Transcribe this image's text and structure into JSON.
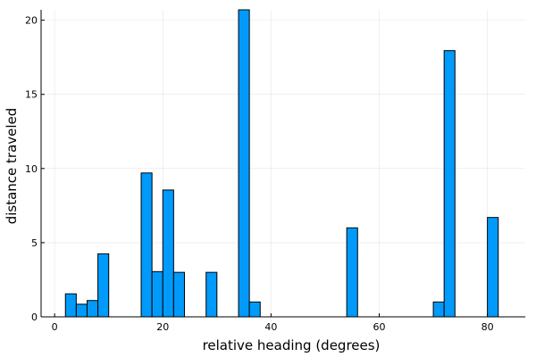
{
  "chart_data": {
    "type": "bar",
    "title": "",
    "xlabel": "relative heading (degrees)",
    "ylabel": "distance traveled",
    "xlim": [
      -2.5,
      87
    ],
    "ylim": [
      0,
      20.7
    ],
    "xticks": [
      0,
      20,
      40,
      60,
      80
    ],
    "yticks": [
      0,
      5,
      10,
      15,
      20
    ],
    "grid": true,
    "legend": "none",
    "bar_width": 2,
    "bar_color": "#009AFA",
    "bars": [
      {
        "x": 2,
        "value": 1.55
      },
      {
        "x": 4,
        "value": 0.85
      },
      {
        "x": 6,
        "value": 1.1
      },
      {
        "x": 8,
        "value": 4.25
      },
      {
        "x": 16,
        "value": 9.7
      },
      {
        "x": 18,
        "value": 3.05
      },
      {
        "x": 20,
        "value": 8.55
      },
      {
        "x": 22,
        "value": 3.0
      },
      {
        "x": 28,
        "value": 3.0
      },
      {
        "x": 34,
        "value": 20.7
      },
      {
        "x": 36,
        "value": 1.0
      },
      {
        "x": 54,
        "value": 6.0
      },
      {
        "x": 70,
        "value": 1.0
      },
      {
        "x": 72,
        "value": 17.95
      },
      {
        "x": 80,
        "value": 6.7
      }
    ]
  }
}
